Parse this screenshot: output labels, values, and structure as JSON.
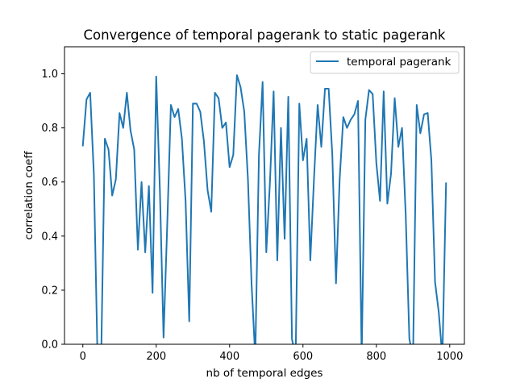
{
  "chart_data": {
    "type": "line",
    "title": "Convergence of temporal pagerank to static pagerank",
    "xlabel": "nb of temporal edges",
    "ylabel": "correlation coeff",
    "xlim": [
      -50,
      1040
    ],
    "ylim": [
      0.0,
      1.1
    ],
    "xticks": [
      0,
      200,
      400,
      600,
      800,
      1000
    ],
    "yticks": [
      0.0,
      0.2,
      0.4,
      0.6,
      0.8,
      1.0
    ],
    "xtick_labels": [
      "0",
      "200",
      "400",
      "600",
      "800",
      "1000"
    ],
    "ytick_labels": [
      "0.0",
      "0.2",
      "0.4",
      "0.6",
      "0.8",
      "1.0"
    ],
    "grid": false,
    "legend_position": "top-right",
    "series": [
      {
        "name": "temporal pagerank",
        "color": "#1f77b4",
        "x": [
          0,
          10,
          20,
          30,
          40,
          50,
          60,
          70,
          80,
          90,
          100,
          110,
          120,
          130,
          140,
          150,
          160,
          170,
          180,
          190,
          200,
          210,
          220,
          230,
          240,
          250,
          260,
          270,
          280,
          290,
          300,
          310,
          320,
          330,
          340,
          350,
          360,
          370,
          380,
          390,
          400,
          410,
          420,
          430,
          440,
          450,
          460,
          470,
          480,
          490,
          500,
          510,
          520,
          530,
          540,
          550,
          560,
          570,
          580,
          590,
          600,
          610,
          620,
          630,
          640,
          650,
          660,
          670,
          680,
          690,
          700,
          710,
          720,
          730,
          740,
          750,
          760,
          770,
          780,
          790,
          800,
          810,
          820,
          830,
          840,
          850,
          860,
          870,
          880,
          890,
          900,
          910,
          920,
          930,
          940,
          950,
          960,
          970,
          980,
          990
        ],
        "y": [
          0.735,
          0.905,
          0.93,
          0.63,
          -0.05,
          -0.05,
          0.76,
          0.72,
          0.55,
          0.61,
          0.855,
          0.8,
          0.93,
          0.79,
          0.72,
          0.35,
          0.6,
          0.34,
          0.585,
          0.19,
          0.99,
          0.57,
          0.025,
          0.44,
          0.885,
          0.84,
          0.87,
          0.76,
          0.53,
          0.085,
          0.89,
          0.89,
          0.86,
          0.75,
          0.57,
          0.49,
          0.93,
          0.91,
          0.8,
          0.82,
          0.655,
          0.7,
          0.995,
          0.95,
          0.86,
          0.61,
          0.22,
          -0.05,
          0.7,
          0.97,
          0.34,
          0.6,
          0.935,
          0.31,
          0.8,
          0.39,
          0.915,
          0.02,
          -0.05,
          0.89,
          0.68,
          0.76,
          0.31,
          0.61,
          0.885,
          0.73,
          0.945,
          0.945,
          0.7,
          0.225,
          0.61,
          0.84,
          0.8,
          0.83,
          0.85,
          0.9,
          -0.05,
          0.83,
          0.94,
          0.925,
          0.67,
          0.53,
          0.935,
          0.52,
          0.63,
          0.91,
          0.73,
          0.8,
          0.48,
          0.02,
          -0.05,
          0.885,
          0.78,
          0.85,
          0.855,
          0.68,
          0.23,
          0.12,
          -0.05,
          0.595
        ]
      }
    ]
  }
}
